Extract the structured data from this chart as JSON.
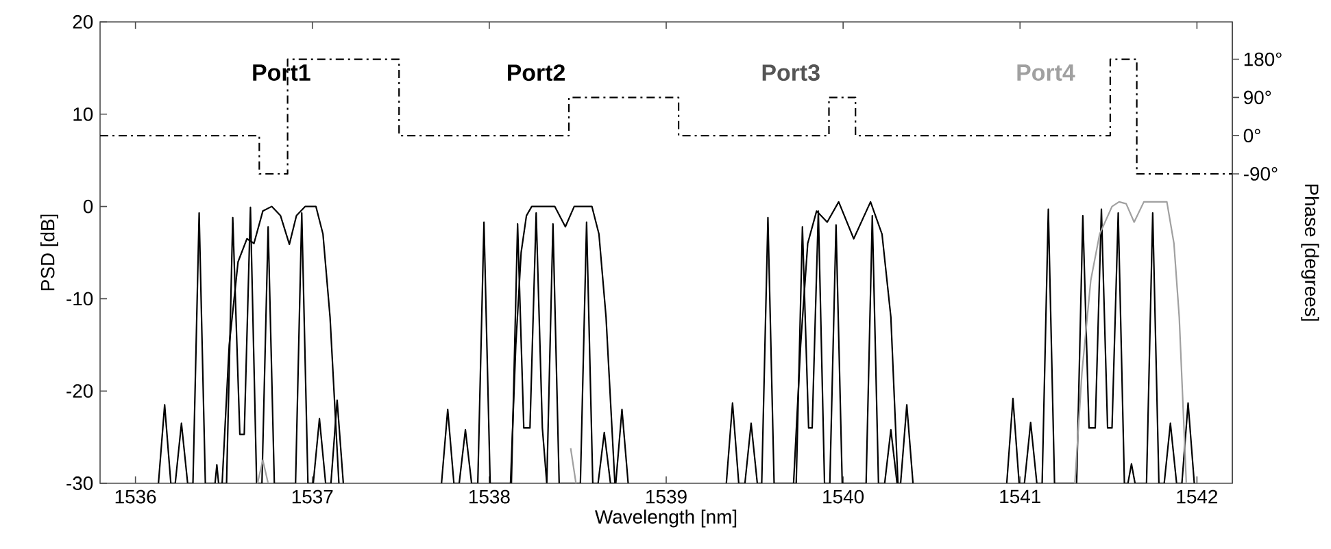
{
  "chart_data": {
    "type": "line",
    "xlabel": "Wavelength [nm]",
    "ylabel": "PSD [dB]",
    "y2label": "Phase [degrees]",
    "xlim": [
      1535.8,
      1542.2
    ],
    "ylim": [
      -30,
      20
    ],
    "y2lim": [
      -819,
      268
    ],
    "xticks": [
      1536,
      1537,
      1538,
      1539,
      1540,
      1541,
      1542
    ],
    "yticks": [
      -30,
      -20,
      -10,
      0,
      10,
      20
    ],
    "y2ticks": [
      {
        "value": -90,
        "label": "-90°"
      },
      {
        "value": 0,
        "label": "0°"
      },
      {
        "value": 90,
        "label": "90°"
      },
      {
        "value": 180,
        "label": "180°"
      }
    ],
    "annotations": [
      "Port1",
      "Port2",
      "Port3",
      "Port4"
    ],
    "series": [
      {
        "type": "step",
        "axis": "y2",
        "line_style": "dashdot",
        "color": "#000000",
        "x": [
          1535.8,
          1536.7,
          1536.86,
          1537.49,
          1538.45,
          1539.07,
          1539.92,
          1540.07,
          1541.51,
          1541.66,
          1542.2
        ],
        "values": [
          0,
          -90,
          180,
          0,
          90,
          0,
          90,
          0,
          180,
          -90,
          -90
        ]
      },
      {
        "color": "#000000",
        "x": [
          1536.13,
          1536.165,
          1536.2,
          1536.225,
          1536.26,
          1536.295,
          1536.325,
          1536.36,
          1536.395,
          1536.45,
          1536.46,
          1536.47,
          1536.515,
          1536.55,
          1536.59,
          1536.615,
          1536.65,
          1536.685,
          1536.715,
          1536.75,
          1536.785,
          1536.905,
          1536.94,
          1536.975,
          1537.005,
          1537.04,
          1537.075,
          1537.105,
          1537.14,
          1537.175
        ],
        "values": [
          -30,
          -21.5,
          -30,
          -30,
          -23.5,
          -30,
          -30,
          -0.7,
          -30,
          -30,
          -28,
          -30,
          -30,
          -1.2,
          -24.7,
          -24.7,
          -0.1,
          -30,
          -30,
          -2.2,
          -30,
          -30,
          -0.7,
          -30,
          -30,
          -23,
          -30,
          -30,
          -21,
          -30
        ]
      },
      {
        "color": "#000000",
        "x": [
          1536.49,
          1536.53,
          1536.58,
          1536.63,
          1536.67,
          1536.72,
          1536.77,
          1536.82,
          1536.87,
          1536.91,
          1536.96,
          1537.02,
          1537.06,
          1537.1,
          1537.15
        ],
        "values": [
          -30,
          -15,
          -6,
          -3.5,
          -4,
          -0.5,
          0,
          -1,
          -4.1,
          -1,
          0,
          0,
          -3,
          -12,
          -30
        ]
      },
      {
        "color": "#000000",
        "x": [
          1537.73,
          1537.765,
          1537.8,
          1537.83,
          1537.865,
          1537.9,
          1537.935,
          1537.97,
          1538.005,
          1538.125,
          1538.16,
          1538.195,
          1538.23,
          1538.265,
          1538.3,
          1538.325,
          1538.36,
          1538.395,
          1538.515,
          1538.55,
          1538.585,
          1538.615,
          1538.65,
          1538.685,
          1538.715,
          1538.75,
          1538.785
        ],
        "values": [
          -30,
          -22,
          -30,
          -30,
          -24.2,
          -30,
          -30,
          -1.7,
          -30,
          -30,
          -1.9,
          -24,
          -24,
          -0.7,
          -24,
          -30,
          -1.9,
          -30,
          -30,
          -1.7,
          -30,
          -30,
          -24.5,
          -30,
          -30,
          -22,
          -30
        ]
      },
      {
        "color": "#000000",
        "x": [
          1538.12,
          1538.15,
          1538.18,
          1538.21,
          1538.24,
          1538.37,
          1538.43,
          1538.48,
          1538.58,
          1538.62,
          1538.66,
          1538.71
        ],
        "values": [
          -30,
          -15,
          -5,
          -1,
          0,
          0,
          -2.2,
          0,
          0,
          -3,
          -12,
          -30
        ]
      },
      {
        "color": "#000000",
        "x": [
          1539.34,
          1539.375,
          1539.41,
          1539.445,
          1539.48,
          1539.515,
          1539.54,
          1539.575,
          1539.61,
          1539.735,
          1539.77,
          1539.805,
          1539.825,
          1539.86,
          1539.895,
          1539.925,
          1539.96,
          1539.995,
          1540.13,
          1540.165,
          1540.2,
          1540.235,
          1540.27,
          1540.305,
          1540.325,
          1540.36,
          1540.395
        ],
        "values": [
          -30,
          -21.3,
          -30,
          -30,
          -23.5,
          -30,
          -30,
          -1.2,
          -30,
          -30,
          -2.2,
          -24,
          -24,
          -0.5,
          -30,
          -30,
          -2,
          -30,
          -30,
          -1,
          -30,
          -30,
          -24.2,
          -30,
          -30,
          -21.5,
          -30
        ]
      },
      {
        "color": "#000000",
        "x": [
          1539.72,
          1539.76,
          1539.8,
          1539.85,
          1539.91,
          1539.975,
          1540.06,
          1540.155,
          1540.22,
          1540.27,
          1540.31
        ],
        "values": [
          -30,
          -15,
          -4,
          -0.5,
          -1.7,
          0.5,
          -3.5,
          0.5,
          -3,
          -12,
          -30
        ]
      },
      {
        "color": "#000000",
        "x": [
          1540.925,
          1540.96,
          1540.995,
          1541.025,
          1541.06,
          1541.095,
          1541.125,
          1541.16,
          1541.195,
          1541.32,
          1541.355,
          1541.39,
          1541.425,
          1541.46,
          1541.495,
          1541.52,
          1541.555,
          1541.59,
          1541.61,
          1541.63,
          1541.65,
          1541.715,
          1541.75,
          1541.785,
          1541.815,
          1541.85,
          1541.885,
          1541.915,
          1541.95,
          1541.985
        ],
        "values": [
          -30,
          -20.8,
          -30,
          -30,
          -23.4,
          -30,
          -30,
          -0.3,
          -30,
          -30,
          -1,
          -24,
          -24,
          -0.3,
          -24,
          -24,
          -0.7,
          -30,
          -30,
          -27.9,
          -30,
          -30,
          -0.7,
          -30,
          -30,
          -23.5,
          -30,
          -30,
          -21.3,
          -30
        ]
      },
      {
        "color": "#a0a0a0",
        "x": [
          1541.31,
          1541.35,
          1541.4,
          1541.45,
          1541.52,
          1541.56,
          1541.6,
          1541.645,
          1541.7,
          1541.83,
          1541.87,
          1541.9,
          1541.94
        ],
        "values": [
          -30,
          -18,
          -8,
          -3,
          0,
          0.5,
          0.3,
          -1.7,
          0.5,
          0.5,
          -4,
          -12,
          -30
        ]
      },
      {
        "color": "#a0a0a0",
        "x": [
          1536.69,
          1536.72,
          1536.75,
          1538.43,
          1538.46,
          1538.49
        ],
        "values": [
          -30,
          -27.5,
          -30,
          null,
          -26.2,
          -30
        ]
      }
    ]
  }
}
